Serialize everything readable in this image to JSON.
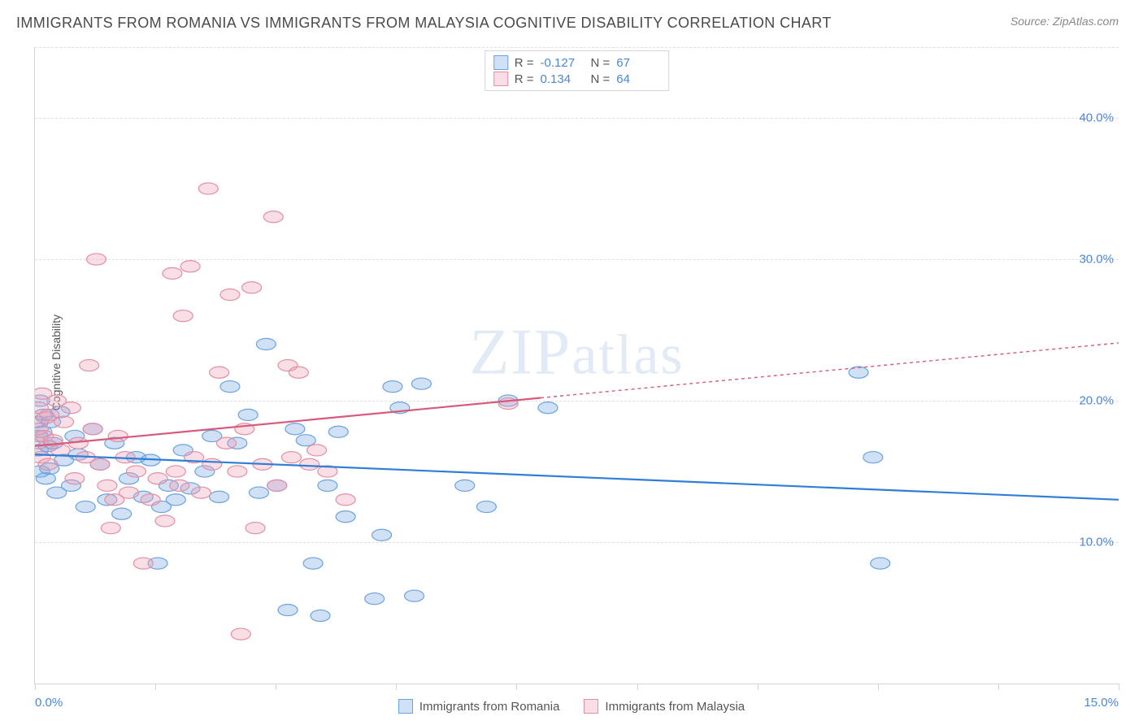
{
  "title": "IMMIGRANTS FROM ROMANIA VS IMMIGRANTS FROM MALAYSIA COGNITIVE DISABILITY CORRELATION CHART",
  "source": "Source: ZipAtlas.com",
  "y_axis_label": "Cognitive Disability",
  "watermark": "ZIPatlas",
  "chart": {
    "type": "scatter",
    "xlim": [
      0,
      15
    ],
    "ylim": [
      0,
      45
    ],
    "x_ticks": [
      0,
      1.666,
      3.333,
      5,
      6.666,
      8.333,
      10,
      11.666,
      13.333,
      15
    ],
    "x_tick_labels": {
      "left": "0.0%",
      "right": "15.0%"
    },
    "y_gridlines": [
      {
        "value": 10,
        "label": "10.0%"
      },
      {
        "value": 20,
        "label": "20.0%"
      },
      {
        "value": 30,
        "label": "30.0%"
      },
      {
        "value": 40,
        "label": "40.0%"
      }
    ],
    "grid_color": "#e0e0e0",
    "background_color": "#ffffff",
    "axis_color": "#d5d5d5",
    "tick_label_color": "#4a86d8",
    "marker_radius": 9,
    "marker_stroke_width": 1.2,
    "line_width": 2.2,
    "dash_pattern": "4 4",
    "series": [
      {
        "name": "Immigrants from Romania",
        "fill": "rgba(120,170,230,0.35)",
        "stroke": "#6aa3e0",
        "line_color": "#2f7ed8",
        "R": "-0.127",
        "N": "67",
        "trend": {
          "x1": 0,
          "y1": 16.2,
          "x2": 15,
          "y2": 13.0,
          "extrapolate_from_x": 15
        },
        "points": [
          [
            0.05,
            16.5
          ],
          [
            0.05,
            17.5
          ],
          [
            0.05,
            18.5
          ],
          [
            0.07,
            20.0
          ],
          [
            0.07,
            15.0
          ],
          [
            0.1,
            17.8
          ],
          [
            0.12,
            19.0
          ],
          [
            0.15,
            14.5
          ],
          [
            0.18,
            16.8
          ],
          [
            0.2,
            15.2
          ],
          [
            0.22,
            18.5
          ],
          [
            0.25,
            17.0
          ],
          [
            0.3,
            13.5
          ],
          [
            0.35,
            19.2
          ],
          [
            0.4,
            15.8
          ],
          [
            0.5,
            14.0
          ],
          [
            0.55,
            17.5
          ],
          [
            0.6,
            16.2
          ],
          [
            0.7,
            12.5
          ],
          [
            0.8,
            18.0
          ],
          [
            0.9,
            15.5
          ],
          [
            1.0,
            13.0
          ],
          [
            1.1,
            17.0
          ],
          [
            1.2,
            12.0
          ],
          [
            1.3,
            14.5
          ],
          [
            1.4,
            16.0
          ],
          [
            1.5,
            13.2
          ],
          [
            1.6,
            15.8
          ],
          [
            1.7,
            8.5
          ],
          [
            1.75,
            12.5
          ],
          [
            1.85,
            14.0
          ],
          [
            1.95,
            13.0
          ],
          [
            2.05,
            16.5
          ],
          [
            2.15,
            13.8
          ],
          [
            2.35,
            15.0
          ],
          [
            2.45,
            17.5
          ],
          [
            2.55,
            13.2
          ],
          [
            2.7,
            21.0
          ],
          [
            2.8,
            17.0
          ],
          [
            2.95,
            19.0
          ],
          [
            3.1,
            13.5
          ],
          [
            3.2,
            24.0
          ],
          [
            3.35,
            14.0
          ],
          [
            3.5,
            5.2
          ],
          [
            3.6,
            18.0
          ],
          [
            3.75,
            17.2
          ],
          [
            3.85,
            8.5
          ],
          [
            3.95,
            4.8
          ],
          [
            4.05,
            14.0
          ],
          [
            4.2,
            17.8
          ],
          [
            4.3,
            11.8
          ],
          [
            4.7,
            6.0
          ],
          [
            4.8,
            10.5
          ],
          [
            4.95,
            21.0
          ],
          [
            5.05,
            19.5
          ],
          [
            5.25,
            6.2
          ],
          [
            5.35,
            21.2
          ],
          [
            5.95,
            14.0
          ],
          [
            6.25,
            12.5
          ],
          [
            6.55,
            20.0
          ],
          [
            7.1,
            19.5
          ],
          [
            11.4,
            22.0
          ],
          [
            11.6,
            16.0
          ],
          [
            11.7,
            8.5
          ]
        ]
      },
      {
        "name": "Immigrants from Malaysia",
        "fill": "rgba(240,160,180,0.35)",
        "stroke": "#e28fa5",
        "line_color": "#d85a7a",
        "R": "0.134",
        "N": "64",
        "trend": {
          "x1": 0,
          "y1": 16.8,
          "x2": 7.0,
          "y2": 20.2,
          "extrapolate_from_x": 7.0
        },
        "points": [
          [
            0.05,
            17.0
          ],
          [
            0.05,
            18.0
          ],
          [
            0.05,
            19.5
          ],
          [
            0.08,
            16.0
          ],
          [
            0.1,
            20.5
          ],
          [
            0.12,
            17.5
          ],
          [
            0.15,
            18.8
          ],
          [
            0.18,
            15.5
          ],
          [
            0.2,
            19.0
          ],
          [
            0.25,
            17.2
          ],
          [
            0.3,
            20.0
          ],
          [
            0.35,
            16.5
          ],
          [
            0.4,
            18.5
          ],
          [
            0.5,
            19.5
          ],
          [
            0.55,
            14.5
          ],
          [
            0.6,
            17.0
          ],
          [
            0.7,
            16.0
          ],
          [
            0.75,
            22.5
          ],
          [
            0.8,
            18.0
          ],
          [
            0.85,
            30.0
          ],
          [
            0.9,
            15.5
          ],
          [
            1.0,
            14.0
          ],
          [
            1.05,
            11.0
          ],
          [
            1.1,
            13.0
          ],
          [
            1.15,
            17.5
          ],
          [
            1.25,
            16.0
          ],
          [
            1.3,
            13.5
          ],
          [
            1.4,
            15.0
          ],
          [
            1.5,
            8.5
          ],
          [
            1.6,
            13.0
          ],
          [
            1.7,
            14.5
          ],
          [
            1.8,
            11.5
          ],
          [
            1.9,
            29.0
          ],
          [
            1.95,
            15.0
          ],
          [
            2.0,
            14.0
          ],
          [
            2.05,
            26.0
          ],
          [
            2.15,
            29.5
          ],
          [
            2.2,
            16.0
          ],
          [
            2.3,
            13.5
          ],
          [
            2.4,
            35.0
          ],
          [
            2.45,
            15.5
          ],
          [
            2.55,
            22.0
          ],
          [
            2.65,
            17.0
          ],
          [
            2.7,
            27.5
          ],
          [
            2.8,
            15.0
          ],
          [
            2.85,
            3.5
          ],
          [
            2.9,
            18.0
          ],
          [
            3.0,
            28.0
          ],
          [
            3.05,
            11.0
          ],
          [
            3.15,
            15.5
          ],
          [
            3.3,
            33.0
          ],
          [
            3.35,
            14.0
          ],
          [
            3.5,
            22.5
          ],
          [
            3.55,
            16.0
          ],
          [
            3.65,
            22.0
          ],
          [
            3.8,
            15.5
          ],
          [
            3.9,
            16.5
          ],
          [
            4.05,
            15.0
          ],
          [
            4.3,
            13.0
          ],
          [
            6.55,
            19.8
          ]
        ]
      }
    ]
  },
  "stats_legend": {
    "R_label": "R =",
    "N_label": "N ="
  },
  "series_legend": {
    "romania": "Immigrants from Romania",
    "malaysia": "Immigrants from Malaysia"
  }
}
